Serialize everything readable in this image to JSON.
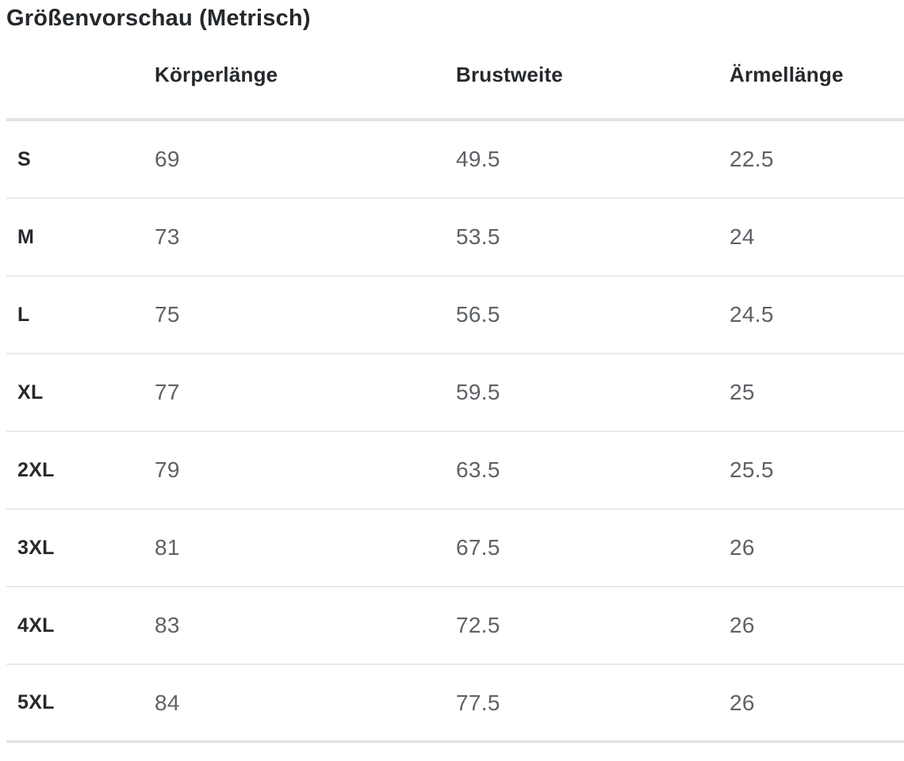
{
  "title": "Größenvorschau (Metrisch)",
  "table": {
    "columns": [
      "Körperlänge",
      "Brustweite",
      "Ärmellänge"
    ],
    "rows": [
      {
        "size": "S",
        "values": [
          "69",
          "49.5",
          "22.5"
        ]
      },
      {
        "size": "M",
        "values": [
          "73",
          "53.5",
          "24"
        ]
      },
      {
        "size": "L",
        "values": [
          "75",
          "56.5",
          "24.5"
        ]
      },
      {
        "size": "XL",
        "values": [
          "77",
          "59.5",
          "25"
        ]
      },
      {
        "size": "2XL",
        "values": [
          "79",
          "63.5",
          "25.5"
        ]
      },
      {
        "size": "3XL",
        "values": [
          "81",
          "67.5",
          "26"
        ]
      },
      {
        "size": "4XL",
        "values": [
          "83",
          "72.5",
          "26"
        ]
      },
      {
        "size": "5XL",
        "values": [
          "84",
          "77.5",
          "26"
        ]
      }
    ]
  },
  "colors": {
    "heading_text": "#26292c",
    "value_text": "#5e6266",
    "divider": "#e2e2e2",
    "row_divider": "#e9e9e9",
    "background": "#ffffff"
  }
}
